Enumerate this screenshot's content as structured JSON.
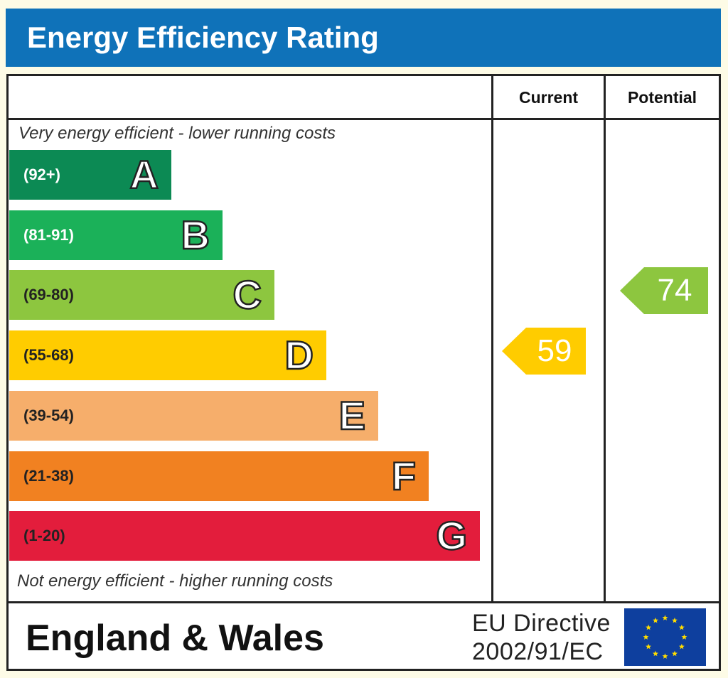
{
  "title": "Energy Efficiency Rating",
  "columns": {
    "current": "Current",
    "potential": "Potential"
  },
  "top_caption": "Very energy efficient - lower running costs",
  "bottom_caption": "Not energy efficient - higher running costs",
  "footer": {
    "region": "England & Wales",
    "directive_line1": "EU Directive",
    "directive_line2": "2002/91/EC"
  },
  "flag_icon": "eu-flag-icon",
  "chart_data": {
    "type": "bar",
    "title": "Energy Efficiency Rating",
    "categories": [
      "A",
      "B",
      "C",
      "D",
      "E",
      "F",
      "G"
    ],
    "bands": [
      {
        "letter": "A",
        "range": "(92+)",
        "color": "#0c8a54",
        "range_color": "#ffffff"
      },
      {
        "letter": "B",
        "range": "(81-91)",
        "color": "#1bb159",
        "range_color": "#ffffff"
      },
      {
        "letter": "C",
        "range": "(69-80)",
        "color": "#8dc63f",
        "range_color": "#222222"
      },
      {
        "letter": "D",
        "range": "(55-68)",
        "color": "#ffcc00",
        "range_color": "#222222"
      },
      {
        "letter": "E",
        "range": "(39-54)",
        "color": "#f6ae6b",
        "range_color": "#222222"
      },
      {
        "letter": "F",
        "range": "(21-38)",
        "color": "#f18121",
        "range_color": "#222222"
      },
      {
        "letter": "G",
        "range": "(1-20)",
        "color": "#e31d3c",
        "range_color": "#222222"
      }
    ],
    "ratings": [
      {
        "name": "Current",
        "value": 59,
        "band": "D",
        "color": "#ffcc00"
      },
      {
        "name": "Potential",
        "value": 74,
        "band": "C",
        "color": "#8dc63f"
      }
    ]
  }
}
